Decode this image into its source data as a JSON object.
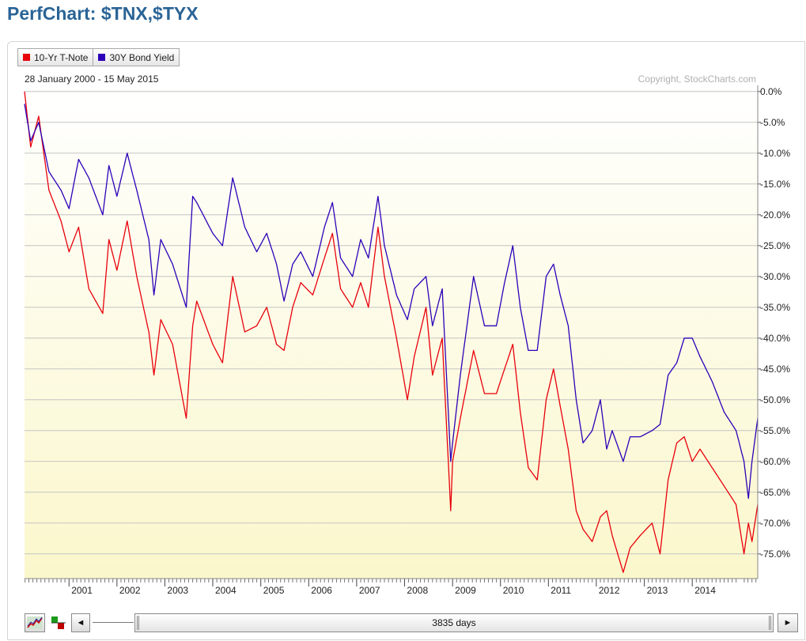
{
  "page": {
    "title": "PerfChart: $TNX,$TYX"
  },
  "legend": [
    {
      "label": "10-Yr T-Note",
      "color": "#e8000b"
    },
    {
      "label": "30Y Bond Yield",
      "color": "#2c00b8"
    }
  ],
  "date_range": "28 January 2000 - 15 May 2015",
  "copyright": "Copyright, StockCharts.com",
  "controls": {
    "left_arrow": "◄",
    "right_arrow": "►",
    "slider_label": "3835 days"
  },
  "chart_data": {
    "type": "line",
    "title": "PerfChart: $TNX,$TYX",
    "xlabel": "",
    "ylabel": "",
    "x_start": "2000-01-28",
    "x_end": "2015-05-15",
    "x_ticks": [
      "2001",
      "2002",
      "2003",
      "2004",
      "2005",
      "2006",
      "2007",
      "2008",
      "2009",
      "2010",
      "2011",
      "2012",
      "2013",
      "2014"
    ],
    "y_ticks": [
      "0.0%",
      "-5.0%",
      "-10.0%",
      "-15.0%",
      "-20.0%",
      "-25.0%",
      "-30.0%",
      "-35.0%",
      "-40.0%",
      "-45.0%",
      "-50.0%",
      "-55.0%",
      "-60.0%",
      "-65.0%",
      "-70.0%",
      "-75.0%"
    ],
    "ylim": [
      -79,
      1
    ],
    "y_axis_side": "right",
    "grid": true,
    "legend_position": "top-left",
    "series": [
      {
        "name": "10-Yr T-Note",
        "color": "#e8000b",
        "x": [
          "2000-01-28",
          "2000-03-15",
          "2000-05-15",
          "2000-08-01",
          "2000-11-01",
          "2001-01-01",
          "2001-03-15",
          "2001-06-01",
          "2001-09-15",
          "2001-11-01",
          "2002-01-01",
          "2002-03-20",
          "2002-06-01",
          "2002-09-01",
          "2002-10-10",
          "2002-12-01",
          "2003-03-01",
          "2003-06-13",
          "2003-08-01",
          "2003-09-01",
          "2004-01-01",
          "2004-03-15",
          "2004-06-01",
          "2004-09-01",
          "2004-12-01",
          "2005-02-15",
          "2005-05-01",
          "2005-06-27",
          "2005-09-01",
          "2005-11-01",
          "2006-02-01",
          "2006-05-01",
          "2006-07-01",
          "2006-09-01",
          "2006-12-01",
          "2007-02-01",
          "2007-04-01",
          "2007-06-13",
          "2007-08-01",
          "2007-11-01",
          "2008-01-23",
          "2008-03-15",
          "2008-06-13",
          "2008-08-01",
          "2008-10-14",
          "2008-12-18",
          "2009-01-01",
          "2009-03-01",
          "2009-06-10",
          "2009-09-01",
          "2009-12-01",
          "2010-02-01",
          "2010-04-05",
          "2010-06-01",
          "2010-08-01",
          "2010-10-08",
          "2010-12-15",
          "2011-02-09",
          "2011-04-01",
          "2011-06-01",
          "2011-08-01",
          "2011-09-22",
          "2011-12-01",
          "2012-02-01",
          "2012-03-20",
          "2012-05-01",
          "2012-07-24",
          "2012-09-15",
          "2012-12-01",
          "2013-03-01",
          "2013-05-01",
          "2013-07-01",
          "2013-09-05",
          "2013-11-01",
          "2014-01-01",
          "2014-03-01",
          "2014-06-01",
          "2014-09-01",
          "2014-12-01",
          "2015-01-30",
          "2015-03-05",
          "2015-04-01",
          "2015-05-15"
        ],
        "values": [
          0,
          -9,
          -4,
          -16,
          -21,
          -26,
          -22,
          -32,
          -36,
          -24,
          -29,
          -21,
          -30,
          -39,
          -46,
          -37,
          -41,
          -53,
          -38,
          -34,
          -41,
          -44,
          -30,
          -39,
          -38,
          -35,
          -41,
          -42,
          -35,
          -31,
          -33,
          -27,
          -23,
          -32,
          -35,
          -31,
          -35,
          -22,
          -30,
          -40,
          -50,
          -43,
          -35,
          -46,
          -40,
          -68,
          -60,
          -53,
          -42,
          -49,
          -49,
          -45,
          -41,
          -52,
          -61,
          -63,
          -50,
          -45,
          -51,
          -58,
          -68,
          -71,
          -73,
          -69,
          -68,
          -72,
          -78,
          -74,
          -72,
          -70,
          -75,
          -63,
          -57,
          -56,
          -60,
          -58,
          -61,
          -64,
          -67,
          -75,
          -70,
          -73,
          -67
        ]
      },
      {
        "name": "30Y Bond Yield",
        "color": "#2c00b8",
        "x": [
          "2000-01-28",
          "2000-03-15",
          "2000-05-15",
          "2000-08-01",
          "2000-11-01",
          "2001-01-01",
          "2001-03-15",
          "2001-06-01",
          "2001-09-15",
          "2001-11-01",
          "2002-01-01",
          "2002-03-20",
          "2002-06-01",
          "2002-09-01",
          "2002-10-10",
          "2002-12-01",
          "2003-03-01",
          "2003-06-13",
          "2003-08-01",
          "2003-09-01",
          "2004-01-01",
          "2004-03-15",
          "2004-06-01",
          "2004-09-01",
          "2004-12-01",
          "2005-02-15",
          "2005-05-01",
          "2005-06-27",
          "2005-09-01",
          "2005-11-01",
          "2006-02-01",
          "2006-05-01",
          "2006-07-01",
          "2006-09-01",
          "2006-12-01",
          "2007-02-01",
          "2007-04-01",
          "2007-06-13",
          "2007-08-01",
          "2007-11-01",
          "2008-01-23",
          "2008-03-15",
          "2008-06-13",
          "2008-08-01",
          "2008-10-14",
          "2008-12-18",
          "2009-01-01",
          "2009-03-01",
          "2009-06-10",
          "2009-09-01",
          "2009-12-01",
          "2010-02-01",
          "2010-04-05",
          "2010-06-01",
          "2010-08-01",
          "2010-10-08",
          "2010-12-15",
          "2011-02-09",
          "2011-04-01",
          "2011-06-01",
          "2011-08-01",
          "2011-09-22",
          "2011-12-01",
          "2012-02-01",
          "2012-03-20",
          "2012-05-01",
          "2012-07-24",
          "2012-09-15",
          "2012-12-01",
          "2013-03-01",
          "2013-05-01",
          "2013-07-01",
          "2013-09-05",
          "2013-11-01",
          "2014-01-01",
          "2014-03-01",
          "2014-06-01",
          "2014-09-01",
          "2014-12-01",
          "2015-01-30",
          "2015-03-05",
          "2015-04-01",
          "2015-05-15"
        ],
        "values": [
          -2,
          -8,
          -5,
          -13,
          -16,
          -19,
          -11,
          -14,
          -20,
          -12,
          -17,
          -10,
          -16,
          -24,
          -33,
          -24,
          -28,
          -35,
          -17,
          -18,
          -23,
          -25,
          -14,
          -22,
          -26,
          -23,
          -28,
          -34,
          -28,
          -26,
          -30,
          -22,
          -18,
          -27,
          -30,
          -24,
          -27,
          -17,
          -25,
          -33,
          -37,
          -32,
          -30,
          -38,
          -32,
          -60,
          -57,
          -46,
          -30,
          -38,
          -38,
          -31,
          -25,
          -35,
          -42,
          -42,
          -30,
          -28,
          -33,
          -38,
          -50,
          -57,
          -55,
          -50,
          -58,
          -55,
          -60,
          -56,
          -56,
          -55,
          -54,
          -46,
          -44,
          -40,
          -40,
          -43,
          -47,
          -52,
          -55,
          -60,
          -66,
          -60,
          -53
        ]
      }
    ]
  }
}
